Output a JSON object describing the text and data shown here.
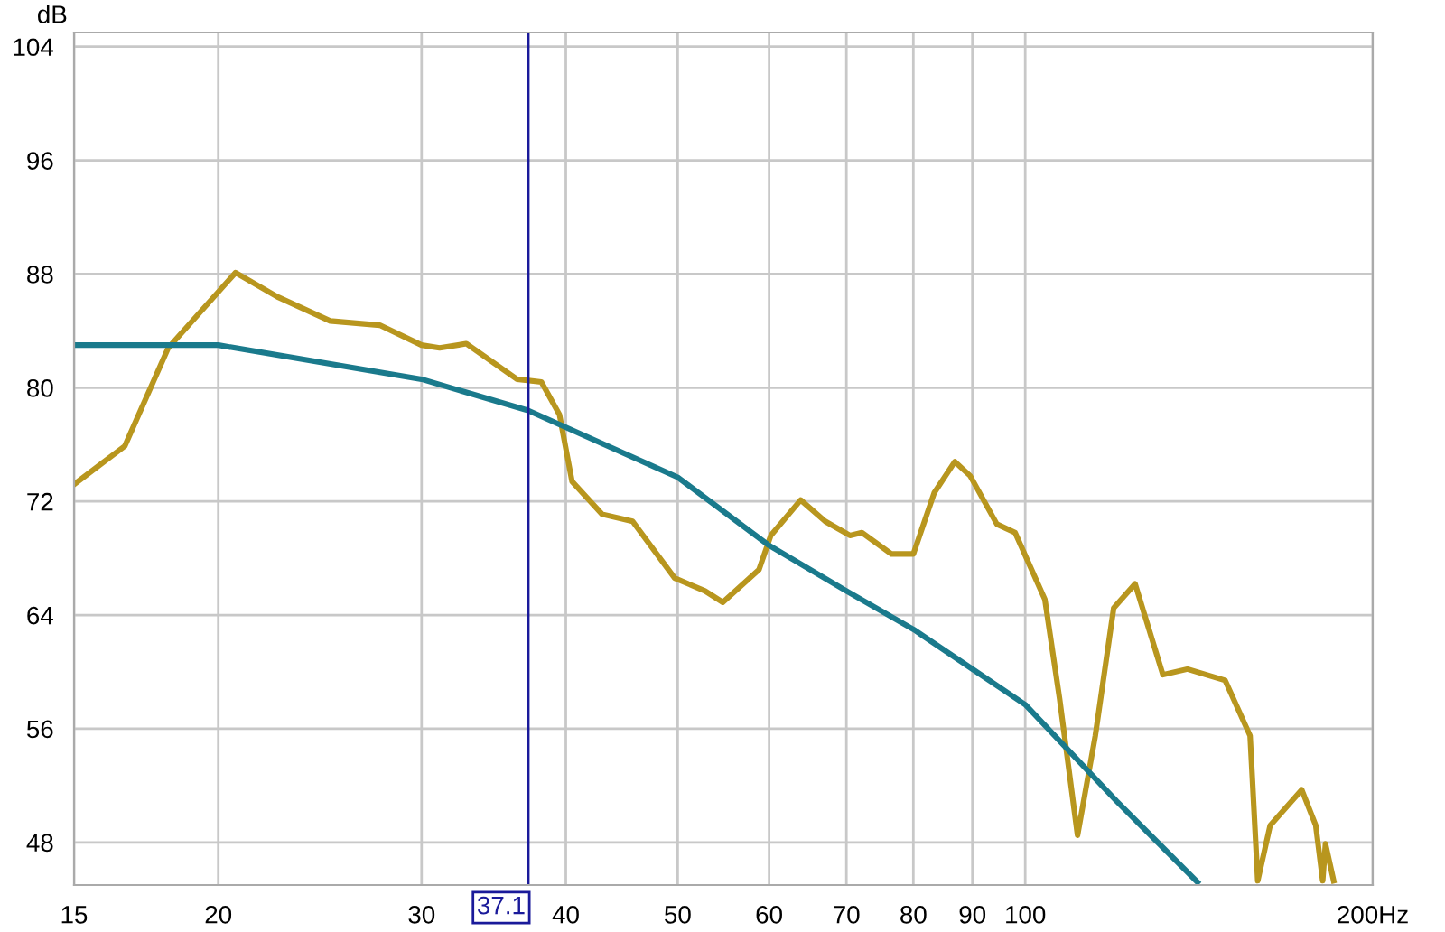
{
  "chart_data": {
    "type": "line",
    "ylabel": "dB",
    "log": "x",
    "grid": true,
    "xlim": [
      15,
      200
    ],
    "ylim": [
      45,
      105
    ],
    "xticks": [
      15,
      20,
      30,
      40,
      50,
      60,
      70,
      80,
      90,
      100,
      {
        "value": 200,
        "label": "200Hz"
      }
    ],
    "yticks": [
      48,
      56,
      64,
      72,
      80,
      88,
      96,
      104
    ],
    "ref_lines": [
      {
        "axis": "x",
        "value": 37.1,
        "label": "37.1",
        "color": "#1a1a9a"
      }
    ],
    "series": [
      {
        "color": "#b8961e",
        "x": [
          15,
          16.6,
          18.1,
          20.7,
          22.5,
          25.0,
          27.6,
          30.0,
          31.1,
          32.8,
          36.3,
          38.1,
          39.5,
          40.5,
          43.0,
          45.7,
          49.7,
          52.8,
          54.7,
          58.8,
          60.2,
          63.9,
          67.1,
          70.5,
          72.2,
          76.6,
          80,
          83.4,
          86.9,
          89.6,
          94.5,
          98.0,
          104,
          107.1,
          111,
          115,
          119.3,
          124.5,
          131.6,
          138.2,
          149,
          156.6,
          159,
          163,
          173.6,
          178.5,
          181,
          182,
          185
        ],
        "values": [
          73.2,
          75.9,
          82.8,
          88.1,
          86.4,
          84.7,
          84.4,
          83.0,
          82.8,
          83.1,
          80.6,
          80.4,
          78.1,
          73.4,
          71.1,
          70.6,
          66.6,
          65.7,
          64.9,
          67.2,
          69.6,
          72.1,
          70.6,
          69.6,
          69.8,
          68.3,
          68.3,
          72.6,
          74.8,
          73.8,
          70.4,
          69.8,
          65.1,
          58.1,
          48.5,
          55.5,
          64.5,
          66.2,
          59.8,
          60.2,
          59.4,
          55.5,
          45.3,
          49.2,
          51.7,
          49.2,
          45.3,
          47.9,
          45.3
        ]
      },
      {
        "color": "#1a7a8c",
        "x": [
          15,
          20,
          30,
          37.1,
          50,
          60,
          70,
          80,
          90,
          100,
          120,
          141
        ],
        "values": [
          83.0,
          83.0,
          80.6,
          78.4,
          73.7,
          68.9,
          65.7,
          63.0,
          60.2,
          57.7,
          50.9,
          45.2
        ]
      }
    ]
  }
}
